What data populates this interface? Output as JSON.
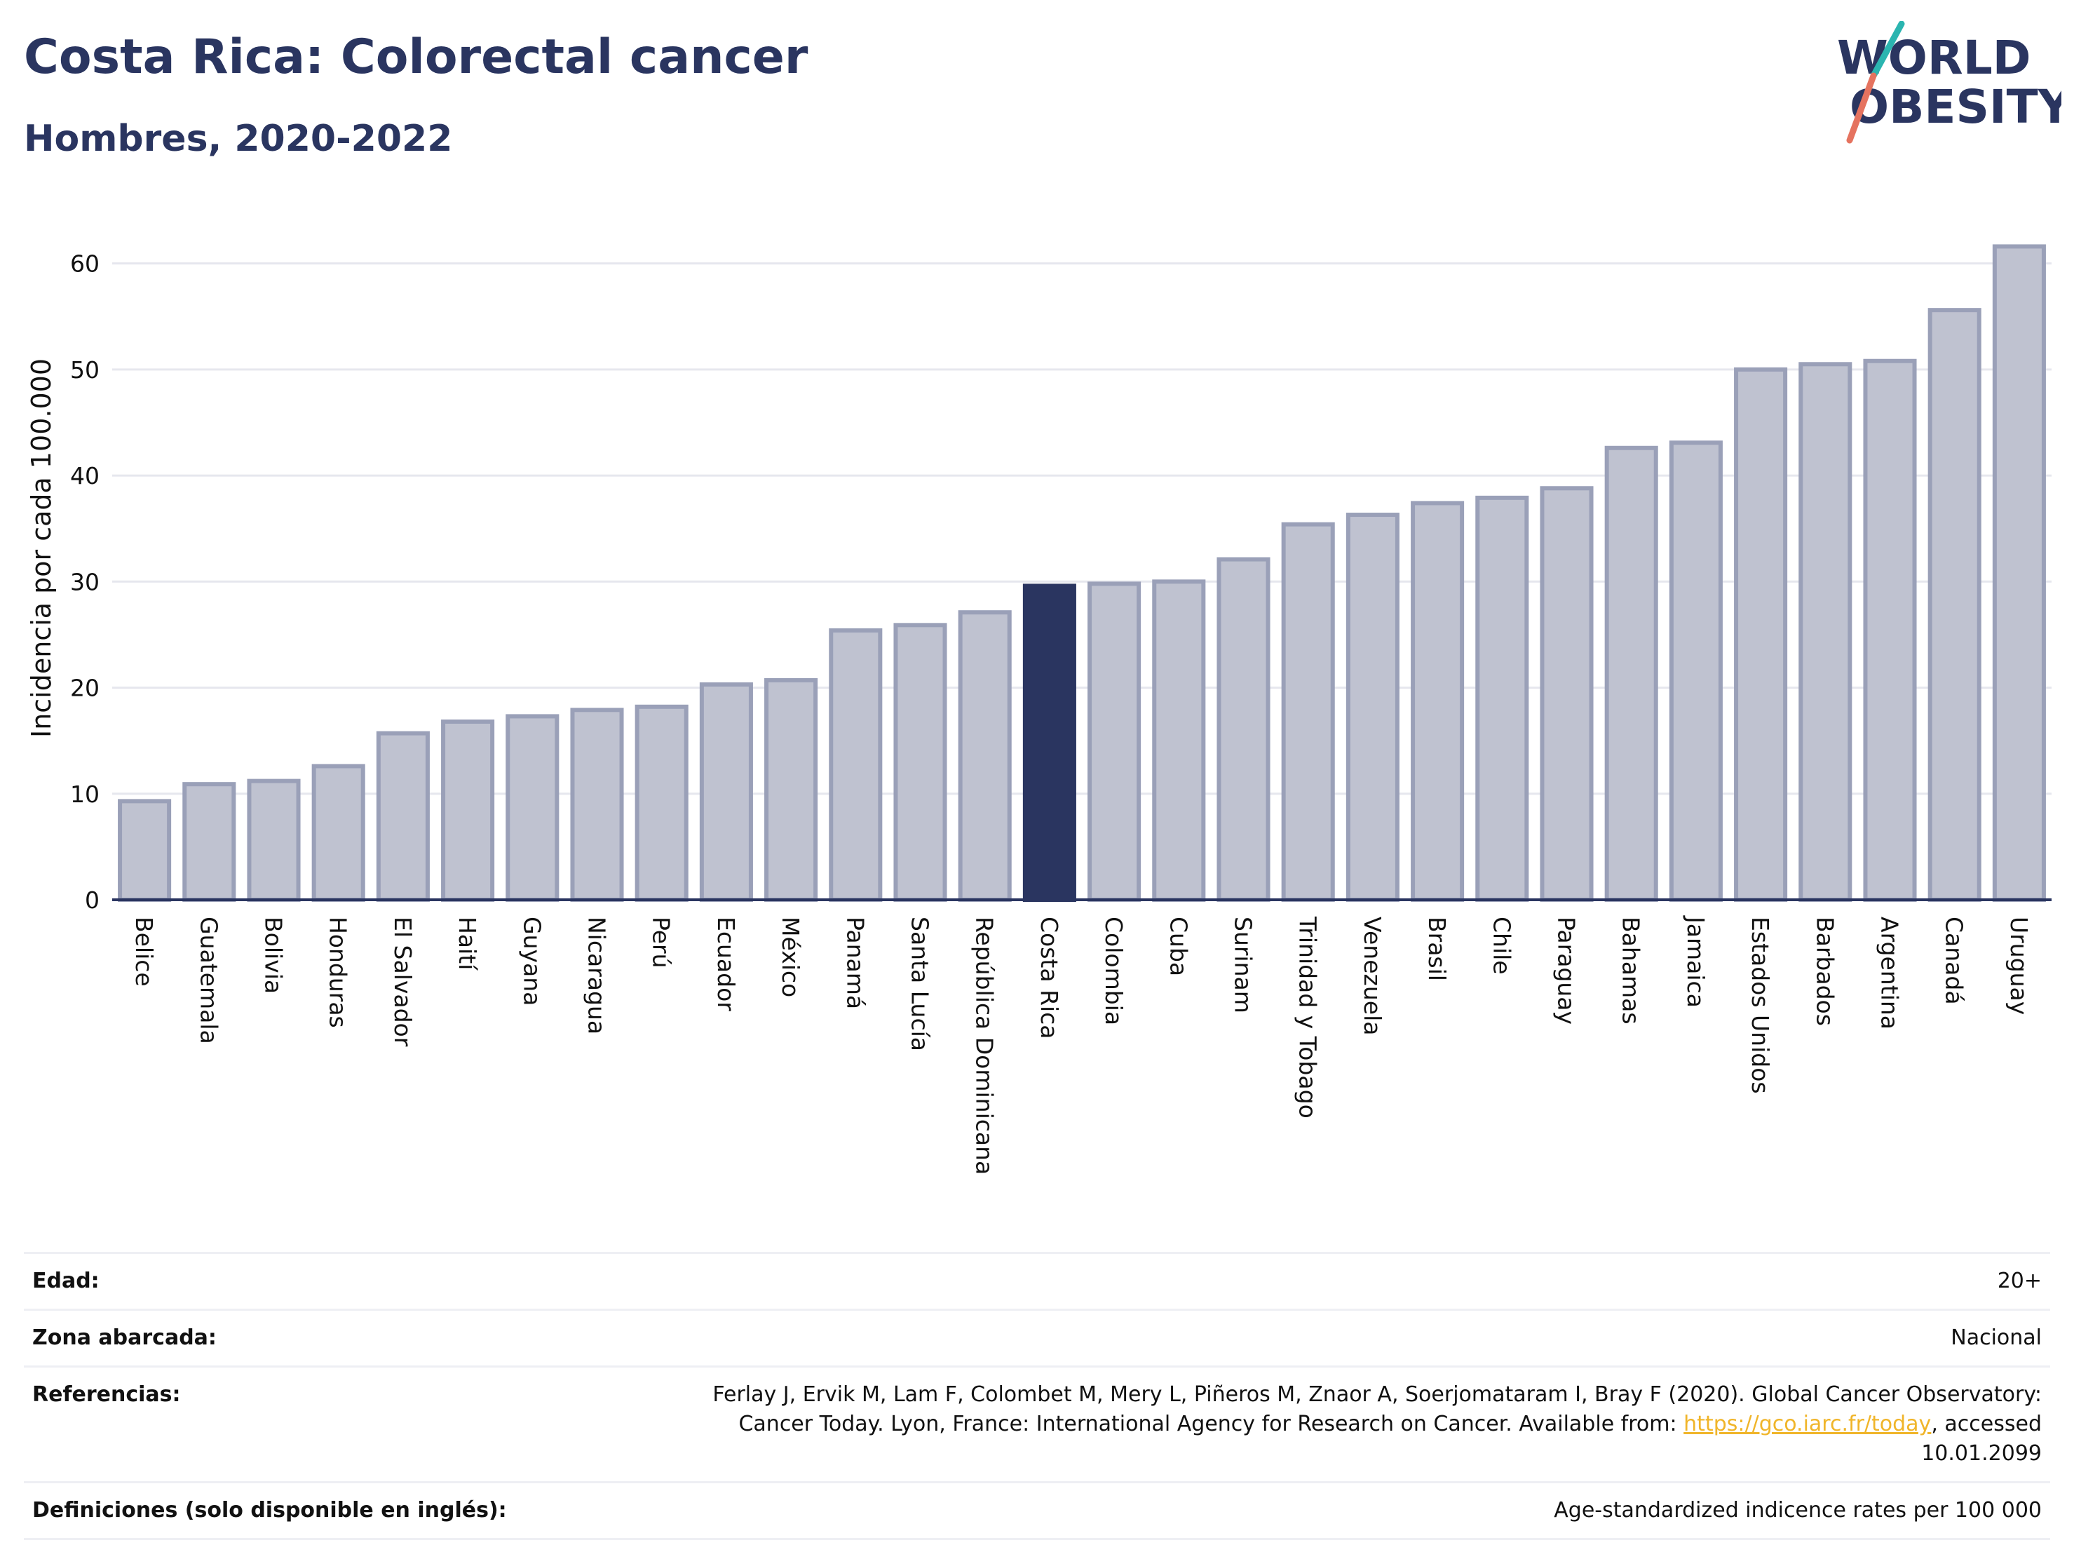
{
  "title": "Costa Rica: Colorectal cancer",
  "subtitle": "Hombres, 2020-2022",
  "logo": {
    "line1": "WORLD",
    "line2": "OBESITY"
  },
  "colors": {
    "bar": "#bfc2d0",
    "bar_border": "#9aa0b8",
    "highlight": "#2a3560",
    "grid": "#e6e7ee"
  },
  "chart_data": {
    "type": "bar",
    "ylabel": "Incidencia por cada 100.000",
    "ylim": [
      0,
      65
    ],
    "yticks": [
      0,
      10,
      20,
      30,
      40,
      50,
      60
    ],
    "grid": true,
    "highlight": "Costa Rica",
    "categories": [
      "Belice",
      "Guatemala",
      "Bolivia",
      "Honduras",
      "El Salvador",
      "Haití",
      "Guyana",
      "Nicaragua",
      "Perú",
      "Ecuador",
      "México",
      "Panamá",
      "Santa Lucía",
      "República Dominicana",
      "Costa Rica",
      "Colombia",
      "Cuba",
      "Surinam",
      "Trinidad y Tobago",
      "Venezuela",
      "Brasil",
      "Chile",
      "Paraguay",
      "Bahamas",
      "Jamaica",
      "Estados Unidos",
      "Barbados",
      "Argentina",
      "Canadá",
      "Uruguay"
    ],
    "values": [
      9.3,
      10.9,
      11.2,
      12.6,
      15.7,
      16.8,
      17.3,
      17.9,
      18.2,
      20.3,
      20.7,
      25.4,
      25.9,
      27.1,
      29.6,
      29.8,
      30.0,
      32.1,
      35.4,
      36.3,
      37.4,
      37.9,
      38.8,
      42.6,
      43.1,
      50.0,
      50.5,
      50.8,
      55.6,
      61.6
    ]
  },
  "info": [
    {
      "key": "Edad:",
      "value": "20+"
    },
    {
      "key": "Zona abarcada:",
      "value": "Nacional"
    },
    {
      "key": "Referencias:",
      "value": "Ferlay J, Ervik M, Lam F, Colombet M, Mery L, Piñeros M, Znaor A, Soerjomataram I, Bray F (2020). Global Cancer Observatory: Cancer Today. Lyon, France: International Agency for Research on Cancer. Available from:",
      "link": "https://gco.iarc.fr/today",
      "suffix": ", accessed 10.01.2099"
    },
    {
      "key": "Definiciones (solo disponible en inglés):",
      "value": "Age-standardized indicence rates per 100 000"
    }
  ]
}
